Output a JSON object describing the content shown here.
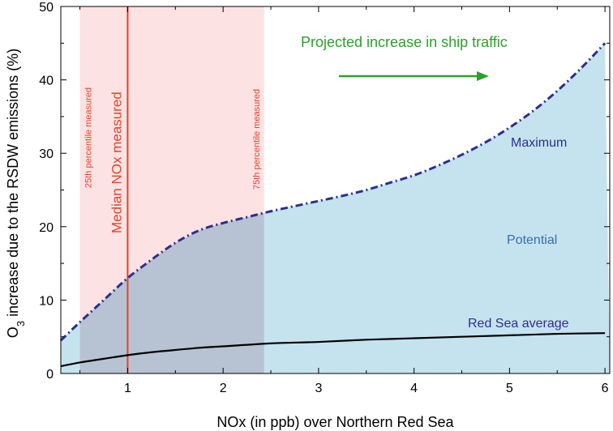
{
  "chart_data": {
    "type": "area",
    "xlabel": "NOx (in ppb) over Northern Red Sea",
    "ylabel_main": "O",
    "ylabel_sub": "3",
    "ylabel_rest": " increase due to the RSDW emissions (%)",
    "xlim": [
      0.3,
      6.05
    ],
    "ylim": [
      0,
      50
    ],
    "xticks": [
      1,
      2,
      3,
      4,
      5,
      6
    ],
    "yticks": [
      0,
      10,
      20,
      30,
      40,
      50
    ],
    "grid": false,
    "series": [
      {
        "name": "Maximum",
        "style": "dash-dot",
        "color": "#2e2e8f",
        "x": [
          0.3,
          0.5,
          0.75,
          1.0,
          1.25,
          1.5,
          1.75,
          2.0,
          2.25,
          2.5,
          2.75,
          3.0,
          3.25,
          3.5,
          3.75,
          4.0,
          4.25,
          4.5,
          4.75,
          5.0,
          5.25,
          5.5,
          5.75,
          6.0
        ],
        "values": [
          4.5,
          7.0,
          10.0,
          13.0,
          15.5,
          17.8,
          19.5,
          20.5,
          21.3,
          22.1,
          22.8,
          23.5,
          24.2,
          25.0,
          26.0,
          27.0,
          28.3,
          29.8,
          31.5,
          33.5,
          35.8,
          38.5,
          41.6,
          45.0
        ]
      },
      {
        "name": "Red Sea average",
        "style": "solid",
        "color": "#000000",
        "x": [
          0.3,
          0.5,
          0.75,
          1.0,
          1.25,
          1.5,
          1.75,
          2.0,
          2.5,
          3.0,
          3.5,
          4.0,
          4.5,
          5.0,
          5.5,
          6.0
        ],
        "values": [
          1.0,
          1.5,
          2.0,
          2.5,
          2.9,
          3.2,
          3.5,
          3.7,
          4.1,
          4.3,
          4.6,
          4.8,
          5.0,
          5.2,
          5.4,
          5.5
        ]
      }
    ],
    "fill_color": "#c5e3ef",
    "percentile_band": {
      "x0": 0.5,
      "x1": 2.43,
      "color": "#fde2e3"
    },
    "median_x": 1.0,
    "median_color": "#e4412b",
    "annotations": {
      "median": "Median NOx measured",
      "p25": "25th percentile measured",
      "p75": "75th percentile measured",
      "traffic": "Projected increase in ship traffic",
      "maximum": "Maximum",
      "potential": "Potential",
      "average": "Red Sea average"
    },
    "colors": {
      "traffic": "#2ca02c",
      "label_blue": "#2e2e8f",
      "potential_text": "#3a6ea5",
      "percentile_text": "#e4412b"
    }
  }
}
